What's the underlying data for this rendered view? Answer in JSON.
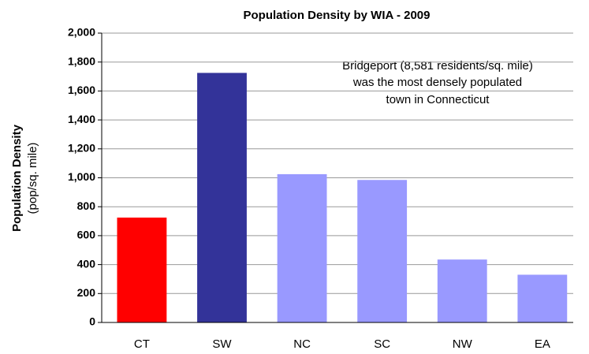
{
  "chart_data": {
    "type": "bar",
    "title": "Population Density by WIA - 2009",
    "y_label": "Population Density",
    "y_label_sub": "(pop/sq. mile)",
    "annotation": [
      "Bridgeport (8,581 residents/sq. mile)",
      "was the most densely populated",
      "town in Connecticut"
    ],
    "categories": [
      "CT",
      "SW",
      "NC",
      "SC",
      "NW",
      "EA"
    ],
    "values": [
      725,
      1725,
      1025,
      985,
      435,
      330
    ],
    "colors": [
      "#ff0000",
      "#333399",
      "#9999ff",
      "#9999ff",
      "#9999ff",
      "#9999ff"
    ],
    "ylim": [
      0,
      2000
    ],
    "yticks": [
      0,
      200,
      400,
      600,
      800,
      {
        "value": 1000,
        "label": "1,000"
      },
      {
        "value": 1200,
        "label": "1,200"
      },
      {
        "value": 1400,
        "label": "1,400"
      },
      {
        "value": 1600,
        "label": "1,600"
      },
      {
        "value": 1800,
        "label": "1,800"
      },
      {
        "value": 2000,
        "label": "2,000"
      }
    ],
    "grid": true
  }
}
